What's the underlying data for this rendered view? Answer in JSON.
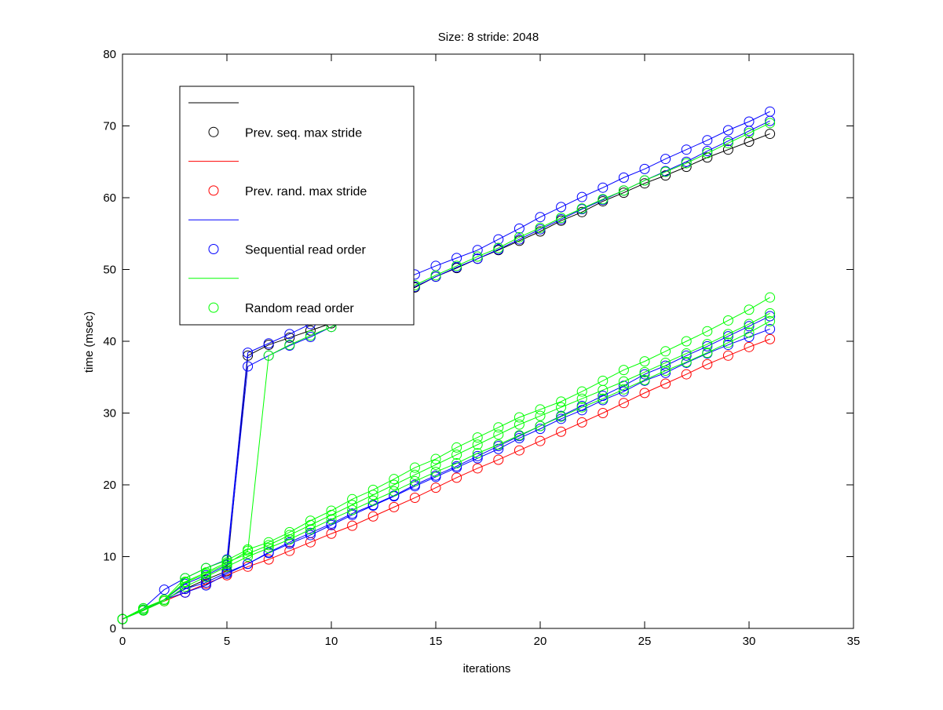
{
  "chart_data": {
    "type": "line",
    "title": "Size: 8 stride: 2048",
    "xlabel": "iterations",
    "ylabel": "time (msec)",
    "xlim": [
      0,
      35
    ],
    "ylim": [
      0,
      80
    ],
    "xticks": [
      0,
      5,
      10,
      15,
      20,
      25,
      30,
      35
    ],
    "yticks": [
      0,
      10,
      20,
      30,
      40,
      50,
      60,
      70,
      80
    ],
    "grid": false,
    "legend_position": "top-left",
    "legend": [
      {
        "label": "",
        "color": "#000000",
        "kind": "line"
      },
      {
        "label": "Prev. seq. max stride",
        "color": "#000000",
        "kind": "marker"
      },
      {
        "label": "",
        "color": "#ff0000",
        "kind": "line"
      },
      {
        "label": "Prev. rand. max stride",
        "color": "#ff0000",
        "kind": "marker"
      },
      {
        "label": "",
        "color": "#0000ff",
        "kind": "line"
      },
      {
        "label": "Sequential read order",
        "color": "#0000ff",
        "kind": "marker"
      },
      {
        "label": "",
        "color": "#00ff00",
        "kind": "line"
      },
      {
        "label": "Random read order",
        "color": "#00ff00",
        "kind": "marker"
      }
    ],
    "x": [
      0,
      1,
      2,
      3,
      4,
      5,
      6,
      7,
      8,
      9,
      10,
      11,
      12,
      13,
      14,
      15,
      16,
      17,
      18,
      19,
      20,
      21,
      22,
      23,
      24,
      25,
      26,
      27,
      28,
      29,
      30,
      31
    ],
    "series": [
      {
        "name": "Prev. seq. max stride",
        "color": "#000000",
        "values": [
          1.3,
          2.6,
          4,
          5.5,
          6.8,
          8,
          38,
          39.5,
          40.5,
          41.5,
          42.5,
          44,
          45,
          46.5,
          47.5,
          49,
          50.2,
          51.5,
          52.7,
          54,
          55.3,
          56.8,
          58,
          59.5,
          60.7,
          62,
          63.1,
          64.3,
          65.6,
          66.7,
          67.8,
          68.9
        ]
      },
      {
        "name": "Prev. rand. max stride",
        "color": "#ff0000",
        "values": [
          1.3,
          2.5,
          3.8,
          5,
          6.2,
          7.4,
          8.6,
          9.6,
          10.8,
          12,
          13.2,
          14.3,
          15.6,
          16.9,
          18.2,
          19.6,
          21,
          22.3,
          23.5,
          24.8,
          26.1,
          27.4,
          28.7,
          30,
          31.4,
          32.8,
          34.1,
          35.4,
          36.8,
          38,
          39.2,
          40.3
        ]
      },
      {
        "name": "Sequential read order (run 1)",
        "color": "#0000ff",
        "values": [
          1.3,
          2.8,
          5.4,
          7,
          8.4,
          9.6,
          38.4,
          39.7,
          41,
          42.4,
          43.7,
          45.2,
          46.6,
          48,
          49.3,
          50.5,
          51.6,
          52.7,
          54.2,
          55.7,
          57.3,
          58.7,
          60.1,
          61.4,
          62.8,
          64,
          65.4,
          66.7,
          68,
          69.4,
          70.6,
          72
        ]
      },
      {
        "name": "Sequential read order (run 2)",
        "color": "#0000ff",
        "values": [
          1.3,
          2.6,
          4,
          6.2,
          7.4,
          8.8,
          36.5,
          38,
          39.4,
          40.6,
          42,
          43.4,
          44.8,
          46.3,
          47.6,
          49,
          50.3,
          51.5,
          52.8,
          54.2,
          55.6,
          57,
          58.4,
          59.7,
          61,
          62.4,
          63.7,
          65,
          66.5,
          67.9,
          69.3,
          70.7
        ]
      },
      {
        "name": "Sequential read order (run 3)",
        "color": "#0000ff",
        "values": [
          1.3,
          2.5,
          4,
          5,
          6,
          7.6,
          9,
          10.5,
          11.8,
          13,
          14.4,
          15.8,
          17.1,
          18.4,
          19.8,
          21.1,
          22.4,
          23.7,
          25,
          26.5,
          27.8,
          29.2,
          30.4,
          31.8,
          33,
          34.5,
          35.6,
          37,
          38.3,
          39.5,
          40.6,
          41.7
        ]
      },
      {
        "name": "Sequential read order (run 4)",
        "color": "#0000ff",
        "values": [
          1.3,
          2.6,
          4,
          5.5,
          6.4,
          7.8,
          9,
          10.6,
          12,
          13.3,
          14.6,
          16,
          17.2,
          18.5,
          20,
          21.3,
          22.6,
          24,
          25.4,
          26.8,
          28.2,
          29.6,
          31,
          32.4,
          33.8,
          35.4,
          36.6,
          38,
          39.3,
          40.7,
          42.1,
          43.5
        ]
      },
      {
        "name": "Random read order (run 1)",
        "color": "#00ff00",
        "values": [
          1.3,
          2.8,
          4,
          6.4,
          7.6,
          9,
          10.8,
          38,
          39.5,
          40.8,
          42,
          43.6,
          45,
          46.5,
          47.8,
          49.2,
          50.5,
          51.8,
          53,
          54.5,
          55.8,
          57.2,
          58.5,
          59.8,
          61,
          62.4,
          63.6,
          64.8,
          66.2,
          67.6,
          69,
          70.4
        ]
      },
      {
        "name": "Random read order (run 2)",
        "color": "#00ff00",
        "values": [
          1.3,
          2.8,
          4,
          7,
          8.4,
          9.5,
          11,
          12,
          13.4,
          15,
          16.4,
          18,
          19.3,
          20.8,
          22.4,
          23.6,
          25.2,
          26.6,
          28,
          29.4,
          30.5,
          31.6,
          33,
          34.5,
          36,
          37.2,
          38.6,
          40,
          41.4,
          42.9,
          44.4,
          46.1
        ]
      },
      {
        "name": "Random read order (run 3)",
        "color": "#00ff00",
        "values": [
          1.3,
          2.6,
          4,
          6.5,
          7.8,
          9.2,
          10.4,
          11.6,
          13,
          14.4,
          15.8,
          17.2,
          18.6,
          20,
          21.4,
          22.8,
          24.2,
          25.6,
          27,
          28.4,
          29.6,
          30.8,
          32,
          33.2,
          34.4,
          35.7,
          37,
          38.3,
          39.6,
          41,
          42.4,
          43.9
        ]
      },
      {
        "name": "Random read order (run 4)",
        "color": "#00ff00",
        "values": [
          1.3,
          2.5,
          3.8,
          5.8,
          7.2,
          8.6,
          10,
          11.2,
          12.4,
          13.8,
          15.2,
          16.5,
          17.8,
          19.1,
          20.5,
          21.8,
          23,
          24.4,
          25.6,
          26.9,
          28.2,
          29.5,
          30.8,
          32,
          33.3,
          34.6,
          35.9,
          37.1,
          38.4,
          39.8,
          41.2,
          42.8
        ]
      }
    ]
  }
}
